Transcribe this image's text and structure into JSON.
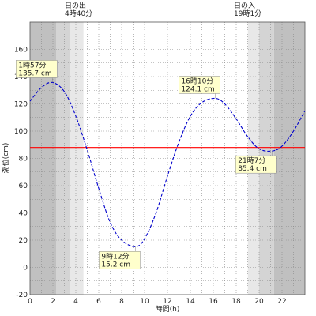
{
  "chart_data": {
    "type": "line",
    "xlabel": "時間(h)",
    "ylabel": "潮位(cm)",
    "xlim": [
      0,
      24
    ],
    "ylim": [
      -20,
      180
    ],
    "x_ticks": [
      0,
      2,
      4,
      6,
      8,
      10,
      12,
      14,
      16,
      18,
      20,
      22
    ],
    "y_ticks": [
      -20,
      0,
      20,
      40,
      60,
      80,
      100,
      120,
      140,
      160
    ],
    "grid": true,
    "reference_line": {
      "value": 88,
      "color": "#ff0000"
    },
    "sunrise": {
      "label_line1": "日の出",
      "label_line2": "4時40分",
      "hour": 4.667
    },
    "sunset": {
      "label_line1": "日の入",
      "label_line2": "19時1分",
      "hour": 19.017
    },
    "night_colors": {
      "dark": "#c0c0c0",
      "mid": "#d4d4d4",
      "light": "#e8e8e8"
    },
    "twilight_bands": [
      {
        "start": 0,
        "end": 2.3,
        "shade": "dark"
      },
      {
        "start": 2.3,
        "end": 3.5,
        "shade": "mid"
      },
      {
        "start": 3.5,
        "end": 4.667,
        "shade": "light"
      },
      {
        "start": 19.017,
        "end": 20.0,
        "shade": "light"
      },
      {
        "start": 20.0,
        "end": 21.3,
        "shade": "mid"
      },
      {
        "start": 21.3,
        "end": 24,
        "shade": "dark"
      }
    ],
    "series": [
      {
        "color": "#0000cc",
        "dash": true,
        "x": [
          0,
          1,
          1.95,
          3,
          4,
          5,
          6,
          7,
          8,
          9.2,
          10,
          11,
          12,
          13,
          14,
          15,
          16.17,
          17,
          18,
          19,
          20,
          21.12,
          22,
          23,
          24
        ],
        "y": [
          122,
          132,
          135.7,
          129,
          111,
          86,
          58,
          33,
          20,
          15.2,
          21,
          40,
          67,
          92,
          111,
          121,
          124.1,
          120,
          109,
          96,
          87,
          85.4,
          89,
          100,
          115
        ]
      }
    ],
    "annotations": [
      {
        "line1": "1時57分",
        "line2": "135.7 cm",
        "x": 1.95,
        "y": 135.7,
        "pos": "above-left"
      },
      {
        "line1": "9時12分",
        "line2": "15.2 cm",
        "x": 9.2,
        "y": 15.2,
        "pos": "below-left"
      },
      {
        "line1": "16時10分",
        "line2": "124.1 cm",
        "x": 16.17,
        "y": 124.1,
        "pos": "above-left"
      },
      {
        "line1": "21時7分",
        "line2": "85.4 cm",
        "x": 21.12,
        "y": 85.4,
        "pos": "below-left"
      }
    ]
  }
}
